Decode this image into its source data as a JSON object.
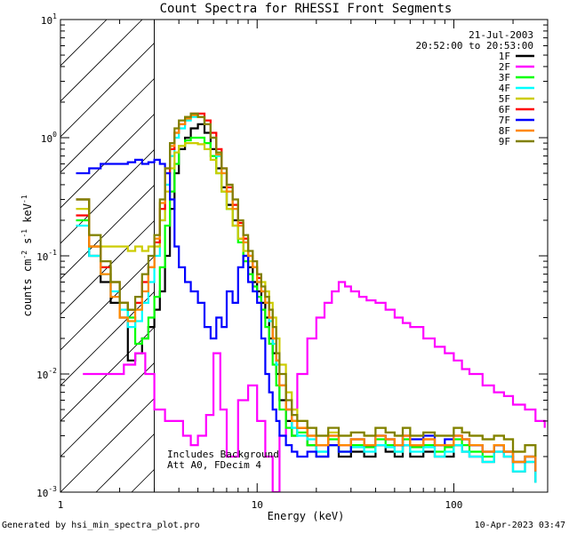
{
  "chart_data": {
    "type": "line",
    "title": "Count Spectra for RHESSI Front Segments",
    "xlabel": "Energy (keV)",
    "ylabel_main": "counts cm",
    "ylabel_sup1": "-2",
    "ylabel_mid": " s",
    "ylabel_sup2": "-1",
    "ylabel_end": " keV",
    "ylabel_sup3": "-1",
    "xscale": "log",
    "yscale": "log",
    "xlim": [
      1,
      300
    ],
    "ylim": [
      0.001,
      10
    ],
    "x_ticks": [
      {
        "value": 1,
        "label": "1"
      },
      {
        "value": 10,
        "label": "10"
      },
      {
        "value": 100,
        "label": "100"
      }
    ],
    "y_ticks": [
      {
        "value": 0.001,
        "base": "10",
        "exp": "-3"
      },
      {
        "value": 0.01,
        "base": "10",
        "exp": "-2"
      },
      {
        "value": 0.1,
        "base": "10",
        "exp": "-1"
      },
      {
        "value": 1,
        "base": "10",
        "exp": "0"
      },
      {
        "value": 10,
        "base": "10",
        "exp": "1"
      }
    ],
    "hatched_region_max_energy": 3,
    "date": "21-Jul-2003",
    "time_range": "20:52:00 to 20:53:00",
    "annotation_line1": "Includes Background",
    "annotation_line2": "Att A0, FDecim 4",
    "legend_position": "top-right",
    "series": [
      {
        "name": "1F",
        "color": "#000000",
        "x": [
          1.2,
          1.4,
          1.6,
          1.8,
          2.0,
          2.2,
          2.4,
          2.6,
          2.8,
          3.0,
          3.2,
          3.4,
          3.6,
          3.8,
          4.0,
          4.3,
          4.6,
          5.0,
          5.4,
          5.8,
          6.2,
          6.6,
          7.0,
          7.5,
          8.0,
          8.5,
          9.0,
          9.5,
          10,
          10.5,
          11,
          11.5,
          12,
          12.5,
          13,
          14,
          15,
          16,
          18,
          20,
          23,
          26,
          30,
          35,
          40,
          45,
          50,
          55,
          60,
          70,
          80,
          90,
          100,
          110,
          120,
          140,
          160,
          180,
          200,
          230,
          260
        ],
        "y": [
          0.3,
          0.1,
          0.06,
          0.04,
          0.03,
          0.013,
          0.015,
          0.02,
          0.025,
          0.035,
          0.05,
          0.1,
          0.25,
          0.5,
          0.8,
          1.0,
          1.2,
          1.3,
          1.1,
          0.8,
          0.55,
          0.38,
          0.27,
          0.2,
          0.14,
          0.1,
          0.08,
          0.06,
          0.05,
          0.04,
          0.03,
          0.02,
          0.015,
          0.01,
          0.006,
          0.004,
          0.003,
          0.0035,
          0.0025,
          0.002,
          0.0025,
          0.002,
          0.0022,
          0.002,
          0.0025,
          0.0022,
          0.002,
          0.0025,
          0.002,
          0.0022,
          0.002,
          0.002,
          0.0025,
          0.0022,
          0.002,
          0.0018,
          0.0022,
          0.002,
          0.0015,
          0.0018,
          0.0012
        ]
      },
      {
        "name": "2F",
        "color": "#ff00ff",
        "x": [
          1.3,
          1.5,
          1.8,
          2.1,
          2.4,
          2.7,
          3.0,
          3.4,
          3.8,
          4.2,
          4.6,
          5.0,
          5.5,
          6.0,
          6.5,
          7.0,
          8.0,
          9.0,
          10,
          11,
          12,
          13,
          14,
          16,
          18,
          20,
          22,
          24,
          26,
          28,
          30,
          33,
          36,
          40,
          45,
          50,
          55,
          60,
          70,
          80,
          90,
          100,
          110,
          120,
          140,
          160,
          180,
          200,
          230,
          260,
          290
        ],
        "y": [
          0.01,
          0.01,
          0.01,
          0.012,
          0.015,
          0.01,
          0.005,
          0.004,
          0.004,
          0.003,
          0.0025,
          0.003,
          0.0045,
          0.015,
          0.005,
          0.002,
          0.006,
          0.008,
          0.004,
          0.002,
          0.001,
          0.003,
          0.005,
          0.01,
          0.02,
          0.03,
          0.04,
          0.05,
          0.06,
          0.055,
          0.05,
          0.045,
          0.042,
          0.04,
          0.035,
          0.03,
          0.027,
          0.025,
          0.02,
          0.017,
          0.015,
          0.013,
          0.011,
          0.01,
          0.008,
          0.007,
          0.0065,
          0.0055,
          0.005,
          0.004,
          0.0035
        ]
      },
      {
        "name": "3F",
        "color": "#00ff00",
        "x": [
          1.2,
          1.4,
          1.6,
          1.8,
          2.0,
          2.2,
          2.4,
          2.6,
          2.8,
          3.0,
          3.2,
          3.4,
          3.6,
          3.8,
          4.0,
          4.3,
          4.6,
          5.0,
          5.4,
          5.8,
          6.2,
          6.6,
          7.0,
          7.5,
          8.0,
          8.5,
          9.0,
          9.5,
          10,
          10.5,
          11,
          11.5,
          12,
          12.5,
          13,
          14,
          15,
          16,
          18,
          20,
          23,
          26,
          30,
          35,
          40,
          45,
          50,
          55,
          60,
          70,
          80,
          90,
          100,
          110,
          120,
          140,
          160,
          180,
          200,
          230,
          260
        ],
        "y": [
          0.2,
          0.12,
          0.08,
          0.06,
          0.04,
          0.03,
          0.018,
          0.02,
          0.03,
          0.045,
          0.08,
          0.18,
          0.35,
          0.6,
          0.85,
          0.95,
          1.0,
          1.0,
          0.9,
          0.7,
          0.5,
          0.35,
          0.25,
          0.18,
          0.13,
          0.09,
          0.07,
          0.055,
          0.045,
          0.035,
          0.025,
          0.018,
          0.012,
          0.008,
          0.005,
          0.0035,
          0.003,
          0.0032,
          0.0025,
          0.0022,
          0.0028,
          0.0022,
          0.0025,
          0.0024,
          0.0028,
          0.0025,
          0.0022,
          0.0028,
          0.0024,
          0.0025,
          0.0022,
          0.0024,
          0.0028,
          0.0025,
          0.0022,
          0.002,
          0.0025,
          0.0022,
          0.0018,
          0.002,
          0.0015
        ]
      },
      {
        "name": "4F",
        "color": "#00ffff",
        "x": [
          1.2,
          1.4,
          1.6,
          1.8,
          2.0,
          2.2,
          2.4,
          2.6,
          2.8,
          3.0,
          3.2,
          3.4,
          3.6,
          3.8,
          4.0,
          4.3,
          4.6,
          5.0,
          5.4,
          5.8,
          6.2,
          6.6,
          7.0,
          7.5,
          8.0,
          8.5,
          9.0,
          9.5,
          10,
          10.5,
          11,
          11.5,
          12,
          12.5,
          13,
          14,
          15,
          16,
          18,
          20,
          23,
          26,
          30,
          35,
          40,
          45,
          50,
          55,
          60,
          70,
          80,
          90,
          100,
          110,
          120,
          140,
          160,
          180,
          200,
          230,
          260
        ],
        "y": [
          0.18,
          0.1,
          0.07,
          0.05,
          0.035,
          0.025,
          0.028,
          0.04,
          0.06,
          0.1,
          0.2,
          0.4,
          0.7,
          1.0,
          1.2,
          1.4,
          1.5,
          1.5,
          1.3,
          1.0,
          0.7,
          0.5,
          0.35,
          0.25,
          0.18,
          0.13,
          0.1,
          0.08,
          0.06,
          0.05,
          0.04,
          0.028,
          0.018,
          0.012,
          0.008,
          0.005,
          0.0035,
          0.003,
          0.0028,
          0.0022,
          0.0025,
          0.0022,
          0.0024,
          0.0022,
          0.0025,
          0.0024,
          0.0022,
          0.0025,
          0.0022,
          0.0024,
          0.002,
          0.0022,
          0.0025,
          0.0022,
          0.002,
          0.0018,
          0.0022,
          0.002,
          0.0015,
          0.0018,
          0.0012
        ]
      },
      {
        "name": "5F",
        "color": "#cccc00",
        "x": [
          1.2,
          1.4,
          1.6,
          1.8,
          2.0,
          2.2,
          2.4,
          2.6,
          2.8,
          3.0,
          3.2,
          3.4,
          3.6,
          3.8,
          4.0,
          4.3,
          4.6,
          5.0,
          5.4,
          5.8,
          6.2,
          6.6,
          7.0,
          7.5,
          8.0,
          8.5,
          9.0,
          9.5,
          10,
          10.5,
          11,
          11.5,
          12,
          12.5,
          13,
          14,
          15,
          16,
          18,
          20,
          23,
          26,
          30,
          35,
          40,
          45,
          50,
          55,
          60,
          70,
          80,
          90,
          100,
          110,
          120,
          140,
          160,
          180,
          200,
          230,
          260
        ],
        "y": [
          0.25,
          0.15,
          0.12,
          0.12,
          0.12,
          0.11,
          0.12,
          0.11,
          0.12,
          0.12,
          0.2,
          0.35,
          0.55,
          0.75,
          0.85,
          0.9,
          0.9,
          0.88,
          0.8,
          0.65,
          0.5,
          0.35,
          0.25,
          0.18,
          0.14,
          0.11,
          0.09,
          0.08,
          0.07,
          0.06,
          0.05,
          0.04,
          0.03,
          0.02,
          0.012,
          0.007,
          0.005,
          0.004,
          0.0035,
          0.003,
          0.0032,
          0.003,
          0.0032,
          0.003,
          0.0035,
          0.0032,
          0.003,
          0.0035,
          0.003,
          0.0032,
          0.003,
          0.003,
          0.0035,
          0.0032,
          0.003,
          0.0028,
          0.003,
          0.0028,
          0.0022,
          0.0025,
          0.002
        ]
      },
      {
        "name": "6F",
        "color": "#ff0000",
        "x": [
          1.2,
          1.4,
          1.6,
          1.8,
          2.0,
          2.2,
          2.4,
          2.6,
          2.8,
          3.0,
          3.2,
          3.4,
          3.6,
          3.8,
          4.0,
          4.3,
          4.6,
          5.0,
          5.4,
          5.8,
          6.2,
          6.6,
          7.0,
          7.5,
          8.0,
          8.5,
          9.0,
          9.5,
          10,
          10.5,
          11,
          11.5,
          12,
          12.5,
          13,
          14,
          15,
          16,
          18,
          20,
          23,
          26,
          30,
          35,
          40,
          45,
          50,
          55,
          60,
          70,
          80,
          90,
          100,
          110,
          120,
          140,
          160,
          180,
          200,
          230,
          260
        ],
        "y": [
          0.22,
          0.12,
          0.08,
          0.06,
          0.04,
          0.035,
          0.04,
          0.06,
          0.08,
          0.13,
          0.25,
          0.5,
          0.8,
          1.1,
          1.3,
          1.5,
          1.6,
          1.6,
          1.4,
          1.1,
          0.8,
          0.55,
          0.38,
          0.27,
          0.19,
          0.14,
          0.1,
          0.08,
          0.065,
          0.05,
          0.04,
          0.03,
          0.02,
          0.013,
          0.008,
          0.005,
          0.004,
          0.0035,
          0.003,
          0.0025,
          0.003,
          0.0025,
          0.0028,
          0.0025,
          0.003,
          0.0028,
          0.0025,
          0.003,
          0.0025,
          0.0028,
          0.0025,
          0.0025,
          0.003,
          0.0028,
          0.0025,
          0.0022,
          0.0025,
          0.0022,
          0.0018,
          0.002,
          0.0015
        ]
      },
      {
        "name": "7F",
        "color": "#0000ff",
        "x": [
          1.2,
          1.4,
          1.6,
          1.8,
          2.0,
          2.2,
          2.4,
          2.6,
          2.8,
          3.0,
          3.2,
          3.4,
          3.6,
          3.8,
          4.0,
          4.3,
          4.6,
          5.0,
          5.4,
          5.8,
          6.2,
          6.6,
          7.0,
          7.5,
          8.0,
          8.5,
          9.0,
          9.5,
          10,
          10.5,
          11,
          11.5,
          12,
          12.5,
          13,
          14,
          15,
          16,
          18,
          20,
          23,
          26,
          30,
          35,
          40,
          45,
          50,
          55,
          60,
          70,
          80,
          90,
          100,
          110,
          120,
          140,
          160,
          180,
          200,
          230,
          260
        ],
        "y": [
          0.5,
          0.55,
          0.6,
          0.6,
          0.6,
          0.62,
          0.65,
          0.6,
          0.62,
          0.65,
          0.6,
          0.5,
          0.3,
          0.12,
          0.08,
          0.06,
          0.05,
          0.04,
          0.025,
          0.02,
          0.03,
          0.025,
          0.05,
          0.04,
          0.08,
          0.1,
          0.06,
          0.05,
          0.04,
          0.02,
          0.01,
          0.007,
          0.005,
          0.004,
          0.003,
          0.0025,
          0.0022,
          0.002,
          0.0022,
          0.002,
          0.0025,
          0.0022,
          0.0028,
          0.0025,
          0.003,
          0.0028,
          0.0025,
          0.003,
          0.0028,
          0.003,
          0.0025,
          0.0028,
          0.003,
          0.0028,
          0.0025,
          0.0022,
          0.0025,
          0.0022,
          0.0018,
          0.002,
          0.0015
        ]
      },
      {
        "name": "8F",
        "color": "#ff8800",
        "x": [
          1.2,
          1.4,
          1.6,
          1.8,
          2.0,
          2.2,
          2.4,
          2.6,
          2.8,
          3.0,
          3.2,
          3.4,
          3.6,
          3.8,
          4.0,
          4.3,
          4.6,
          5.0,
          5.4,
          5.8,
          6.2,
          6.6,
          7.0,
          7.5,
          8.0,
          8.5,
          9.0,
          9.5,
          10,
          10.5,
          11,
          11.5,
          12,
          12.5,
          13,
          14,
          15,
          16,
          18,
          20,
          23,
          26,
          30,
          35,
          40,
          45,
          50,
          55,
          60,
          70,
          80,
          90,
          100,
          110,
          120,
          140,
          160,
          180,
          200,
          230,
          260
        ],
        "y": [
          0.3,
          0.12,
          0.07,
          0.045,
          0.03,
          0.028,
          0.035,
          0.05,
          0.08,
          0.14,
          0.28,
          0.55,
          0.85,
          1.1,
          1.3,
          1.45,
          1.55,
          1.5,
          1.3,
          1.0,
          0.72,
          0.5,
          0.35,
          0.25,
          0.18,
          0.13,
          0.1,
          0.08,
          0.06,
          0.05,
          0.04,
          0.03,
          0.02,
          0.013,
          0.008,
          0.005,
          0.004,
          0.0035,
          0.003,
          0.0025,
          0.003,
          0.0025,
          0.0028,
          0.0025,
          0.003,
          0.0028,
          0.0025,
          0.003,
          0.0025,
          0.0028,
          0.0025,
          0.0025,
          0.003,
          0.0028,
          0.0025,
          0.0022,
          0.0025,
          0.0022,
          0.0018,
          0.002,
          0.0015
        ]
      },
      {
        "name": "9F",
        "color": "#808000",
        "x": [
          1.2,
          1.4,
          1.6,
          1.8,
          2.0,
          2.2,
          2.4,
          2.6,
          2.8,
          3.0,
          3.2,
          3.4,
          3.6,
          3.8,
          4.0,
          4.3,
          4.6,
          5.0,
          5.4,
          5.8,
          6.2,
          6.6,
          7.0,
          7.5,
          8.0,
          8.5,
          9.0,
          9.5,
          10,
          10.5,
          11,
          11.5,
          12,
          12.5,
          13,
          14,
          15,
          16,
          18,
          20,
          23,
          26,
          30,
          35,
          40,
          45,
          50,
          55,
          60,
          70,
          80,
          90,
          100,
          110,
          120,
          140,
          160,
          180,
          200,
          230,
          260
        ],
        "y": [
          0.3,
          0.15,
          0.09,
          0.06,
          0.04,
          0.035,
          0.045,
          0.07,
          0.1,
          0.15,
          0.3,
          0.55,
          0.9,
          1.2,
          1.4,
          1.5,
          1.6,
          1.5,
          1.3,
          1.0,
          0.75,
          0.55,
          0.4,
          0.3,
          0.2,
          0.15,
          0.11,
          0.09,
          0.07,
          0.055,
          0.045,
          0.035,
          0.025,
          0.015,
          0.01,
          0.006,
          0.0045,
          0.004,
          0.0035,
          0.003,
          0.0035,
          0.003,
          0.0032,
          0.003,
          0.0035,
          0.0032,
          0.003,
          0.0035,
          0.003,
          0.0032,
          0.003,
          0.003,
          0.0035,
          0.0032,
          0.003,
          0.0028,
          0.003,
          0.0028,
          0.0022,
          0.0025,
          0.002
        ]
      }
    ]
  },
  "footer": {
    "left": "Generated by hsi_min_spectra_plot.pro",
    "right": "10-Apr-2023 03:47"
  }
}
